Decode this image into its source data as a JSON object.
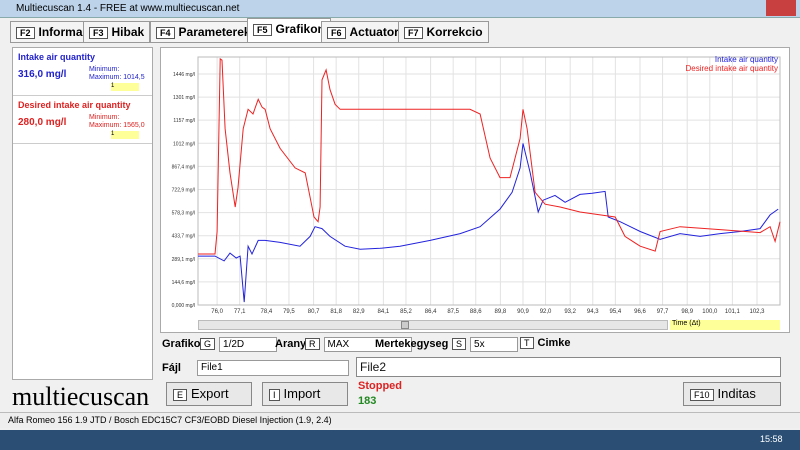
{
  "window": {
    "title": "Multiecuscan 1.4 - FREE at www.multiecuscan.net"
  },
  "tabs": [
    {
      "key": "F2",
      "label": "Informacio"
    },
    {
      "key": "F3",
      "label": "Hibak"
    },
    {
      "key": "F4",
      "label": "Parameterek"
    },
    {
      "key": "F5",
      "label": "Grafikon"
    },
    {
      "key": "F6",
      "label": "Actuators"
    },
    {
      "key": "F7",
      "label": "Korrekcio"
    }
  ],
  "sidebar": {
    "items": [
      {
        "name": "Intake air quantity",
        "value": "316,0 mg/l",
        "min_label": "Minimum:",
        "max_label": "Maximum: 1014,5",
        "selector": "1"
      },
      {
        "name": "Desired intake air quantity",
        "value": "280,0 mg/l",
        "min_label": "Minimum:",
        "max_label": "Maximum: 1565,0",
        "selector": "1"
      }
    ]
  },
  "logo": "multiecuscan",
  "controls": {
    "grafikon": {
      "label": "Grafikon",
      "key": "G",
      "value": "1/2D"
    },
    "arany": {
      "label": "Arany",
      "key": "R",
      "value": "MAX"
    },
    "mertekegyseg": {
      "label": "Mertekegyseg",
      "key": "S",
      "value": "5x"
    },
    "cimke": {
      "label": "Cimke",
      "key": "T"
    },
    "fajl": {
      "label": "Fájl",
      "value": "File1"
    },
    "file2": "File2",
    "status": "Stopped",
    "count": 183
  },
  "buttons": [
    {
      "key": "E",
      "label": "Export"
    },
    {
      "key": "I",
      "label": "Import"
    },
    {
      "key": "F10",
      "label": "Inditas"
    }
  ],
  "status_bar": "Alfa Romeo 156 1.9 JTD / Bosch EDC15C7 CF3/EOBD Diesel Injection (1.9, 2.4)",
  "clock": "15:58",
  "chart_data": {
    "type": "line",
    "x_label": "Time (Δt)",
    "grid": true,
    "legend": "top-right",
    "xlim": [
      75.07,
      103.42
    ],
    "ylim": [
      0,
      1552
    ],
    "xticks": [
      {
        "value": 76.0,
        "label": "76,0"
      },
      {
        "value": 77.1,
        "label": "77,1"
      },
      {
        "value": 78.4,
        "label": "78,4"
      },
      {
        "value": 79.5,
        "label": "79,5"
      },
      {
        "value": 80.7,
        "label": "80,7"
      },
      {
        "value": 81.8,
        "label": "81,8"
      },
      {
        "value": 82.9,
        "label": "82,9"
      },
      {
        "value": 84.1,
        "label": "84,1"
      },
      {
        "value": 85.2,
        "label": "85,2"
      },
      {
        "value": 86.4,
        "label": "86,4"
      },
      {
        "value": 87.5,
        "label": "87,5"
      },
      {
        "value": 88.6,
        "label": "88,6"
      },
      {
        "value": 89.8,
        "label": "89,8"
      },
      {
        "value": 90.9,
        "label": "90,9"
      },
      {
        "value": 92.0,
        "label": "92,0"
      },
      {
        "value": 93.2,
        "label": "93,2"
      },
      {
        "value": 94.3,
        "label": "94,3"
      },
      {
        "value": 95.4,
        "label": "95,4"
      },
      {
        "value": 96.6,
        "label": "96,6"
      },
      {
        "value": 97.7,
        "label": "97,7"
      },
      {
        "value": 98.9,
        "label": "98,9"
      },
      {
        "value": 100.0,
        "label": "100,0"
      },
      {
        "value": 101.1,
        "label": "101,1"
      },
      {
        "value": 102.3,
        "label": "102,3"
      }
    ],
    "yticks": [
      {
        "value": 0,
        "label": "0,000 mg/l"
      },
      {
        "value": 144.6,
        "label": "144,6 mg/l"
      },
      {
        "value": 289.1,
        "label": "289,1 mg/l"
      },
      {
        "value": 433.7,
        "label": "433,7 mg/l"
      },
      {
        "value": 578.3,
        "label": "578,3 mg/l"
      },
      {
        "value": 722.9,
        "label": "722,9 mg/l"
      },
      {
        "value": 867.4,
        "label": "867,4 mg/l"
      },
      {
        "value": 1012,
        "label": "1012 mg/l"
      },
      {
        "value": 1157,
        "label": "1157 mg/l"
      },
      {
        "value": 1301,
        "label": "1301 mg/l"
      },
      {
        "value": 1446,
        "label": "1446 mg/l"
      }
    ],
    "series": [
      {
        "name": "Intake air quantity",
        "color": "#2222dd",
        "x": [
          75.07,
          75.9,
          76.34,
          76.63,
          76.93,
          77.12,
          77.32,
          77.51,
          77.7,
          78.0,
          78.34,
          79.07,
          80.04,
          80.53,
          80.77,
          81.11,
          81.5,
          82.23,
          82.97,
          83.94,
          84.91,
          86.38,
          87.84,
          88.81,
          89.78,
          90.37,
          90.76,
          90.9,
          91.25,
          91.64,
          91.88,
          92.46,
          92.95,
          93.68,
          94.27,
          94.9,
          95.05,
          95.63,
          96.61,
          97.58,
          98.55,
          99.53,
          100.5,
          101.48,
          102.45,
          102.94,
          103.33
        ],
        "values": [
          306,
          306,
          276,
          325,
          294,
          306,
          18,
          368,
          319,
          404,
          404,
          392,
          368,
          429,
          490,
          478,
          429,
          368,
          349,
          355,
          368,
          404,
          447,
          490,
          600,
          705,
          858,
          1011,
          827,
          582,
          656,
          686,
          643,
          692,
          699,
          711,
          551,
          521,
          460,
          411,
          447,
          429,
          447,
          460,
          478,
          564,
          600
        ]
      },
      {
        "name": "Desired intake air quantity",
        "color": "#ee2222",
        "x": [
          75.07,
          75.9,
          76.0,
          76.15,
          76.24,
          76.39,
          76.63,
          76.88,
          77.02,
          77.27,
          77.51,
          77.75,
          78.0,
          78.19,
          78.34,
          78.58,
          79.07,
          79.8,
          80.29,
          80.53,
          80.72,
          80.92,
          81.02,
          81.11,
          81.31,
          81.5,
          81.75,
          81.99,
          84.91,
          88.32,
          88.81,
          89.3,
          89.78,
          90.27,
          90.76,
          90.9,
          91.1,
          91.49,
          91.98,
          92.71,
          93.68,
          94.66,
          95.39,
          95.87,
          96.61,
          97.34,
          97.58,
          98.55,
          100.5,
          102.45,
          102.94,
          103.18,
          103.42
        ],
        "values": [
          319,
          319,
          460,
          1540,
          1532,
          1103,
          827,
          613,
          735,
          1103,
          1225,
          1195,
          1287,
          1238,
          1225,
          1103,
          980,
          858,
          827,
          674,
          551,
          521,
          613,
          1409,
          1471,
          1348,
          1256,
          1225,
          1225,
          1225,
          1195,
          919,
          797,
          797,
          1042,
          1225,
          1103,
          705,
          631,
          613,
          582,
          564,
          551,
          429,
          368,
          337,
          460,
          490,
          472,
          453,
          490,
          398,
          521
        ]
      }
    ]
  }
}
